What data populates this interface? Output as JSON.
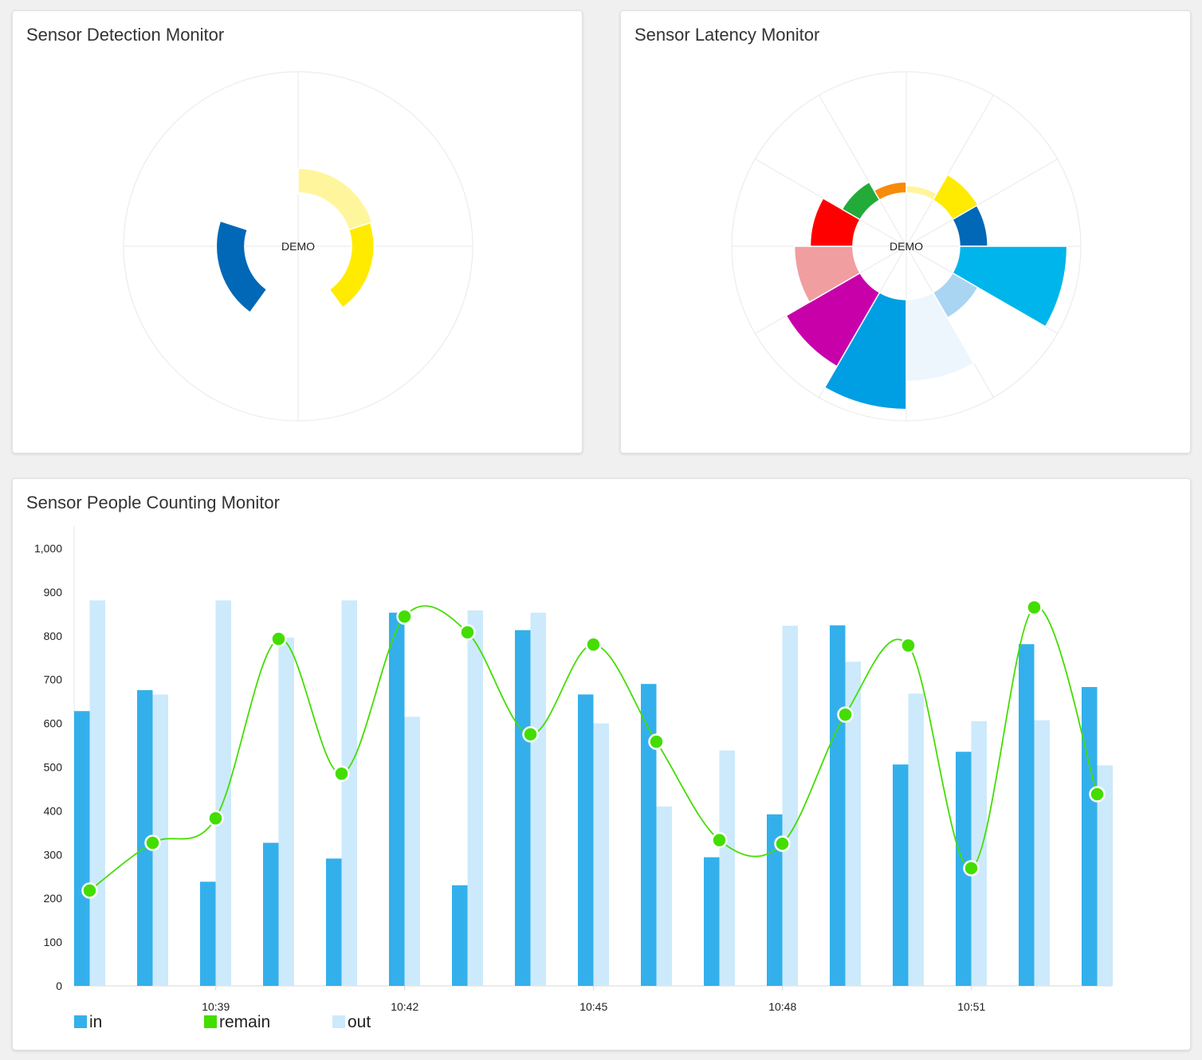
{
  "panels": {
    "detection": {
      "title": "Sensor Detection Monitor"
    },
    "latency": {
      "title": "Sensor Latency Monitor"
    },
    "counting": {
      "title": "Sensor People Counting Monitor"
    }
  },
  "chart_data": [
    {
      "type": "pie",
      "subtype": "polar-nightingale-rose",
      "title": "Sensor Detection Monitor",
      "center_label": "DEMO",
      "radius_max": 100,
      "slices": [
        {
          "value": 37,
          "color": "#fff59d"
        },
        {
          "value": 34,
          "color": "#ffeb00"
        },
        {
          "value": 0,
          "color": "#ffffff"
        },
        {
          "value": 43,
          "color": "#0068b7"
        },
        {
          "value": 1,
          "color": "#5bc2e7"
        }
      ]
    },
    {
      "type": "pie",
      "subtype": "polar-nightingale-rose",
      "title": "Sensor Latency Monitor",
      "center_label": "DEMO",
      "radius_max": 100,
      "slices": [
        {
          "value": 6,
          "color": "#fff59d"
        },
        {
          "value": 24,
          "color": "#ffeb00"
        },
        {
          "value": 23,
          "color": "#0068b7"
        },
        {
          "value": 88,
          "color": "#00b5eb"
        },
        {
          "value": 24,
          "color": "#a9d5f3"
        },
        {
          "value": 67,
          "color": "#eef6fd"
        },
        {
          "value": 90,
          "color": "#009ee3"
        },
        {
          "value": 70,
          "color": "#c800aa"
        },
        {
          "value": 48,
          "color": "#f19ea0"
        },
        {
          "value": 35,
          "color": "#ff0000"
        },
        {
          "value": 17,
          "color": "#22ab38"
        },
        {
          "value": 9,
          "color": "#f68b0a"
        }
      ]
    },
    {
      "type": "bar",
      "title": "Sensor People Counting Monitor",
      "ylim": [
        0,
        1000
      ],
      "yticks": [
        0,
        100,
        200,
        300,
        400,
        500,
        600,
        700,
        800,
        900,
        1000
      ],
      "ytick_labels": [
        "0",
        "100",
        "200",
        "300",
        "400",
        "500",
        "600",
        "700",
        "800",
        "900",
        "1,000"
      ],
      "x_tick_labels": [
        {
          "index": 2.25,
          "label": "10:39"
        },
        {
          "index": 5.25,
          "label": "10:42"
        },
        {
          "index": 8.25,
          "label": "10:45"
        },
        {
          "index": 11.25,
          "label": "10:48"
        },
        {
          "index": 14.25,
          "label": "10:51"
        }
      ],
      "series": [
        {
          "name": "in",
          "type": "bar",
          "color": "#33b0eb",
          "values": [
            628,
            676,
            238,
            327,
            291,
            853,
            230,
            813,
            666,
            690,
            294,
            392,
            824,
            506,
            535,
            781,
            683
          ]
        },
        {
          "name": "out",
          "type": "bar",
          "color": "#cceafb",
          "values": [
            881,
            666,
            881,
            796,
            881,
            615,
            858,
            853,
            600,
            410,
            538,
            823,
            741,
            668,
            605,
            607,
            504
          ]
        },
        {
          "name": "remain",
          "type": "line",
          "color": "#44dd00",
          "values": [
            218,
            327,
            383,
            793,
            485,
            844,
            808,
            575,
            780,
            558,
            333,
            325,
            620,
            778,
            269,
            865,
            438
          ]
        }
      ],
      "legend": [
        {
          "label": "in",
          "color": "#33b0eb"
        },
        {
          "label": "remain",
          "color": "#44dd00"
        },
        {
          "label": "out",
          "color": "#cceafb"
        }
      ]
    }
  ]
}
